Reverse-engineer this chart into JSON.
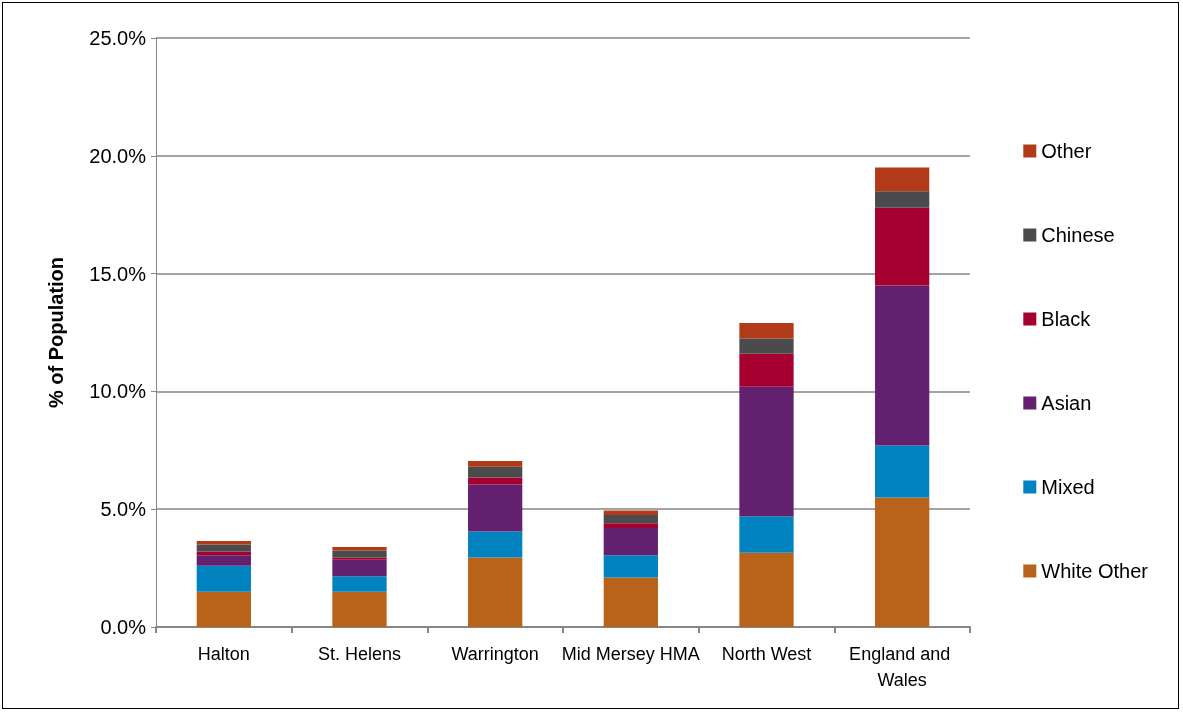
{
  "chart_data": {
    "type": "bar",
    "stacked": true,
    "ylabel": "% of Population",
    "categories": [
      "Halton",
      "St. Helens",
      "Warrington",
      "Mid Mersey HMA",
      "North West",
      "England and Wales"
    ],
    "series": [
      {
        "name": "White Other",
        "color": "#b8621a",
        "values": [
          1.5,
          1.5,
          2.95,
          2.1,
          3.15,
          5.5
        ]
      },
      {
        "name": "Mixed",
        "color": "#0083be",
        "values": [
          1.1,
          0.65,
          1.1,
          0.95,
          1.55,
          2.2
        ]
      },
      {
        "name": "Asian",
        "color": "#62206e",
        "values": [
          0.45,
          0.7,
          2.0,
          1.15,
          5.5,
          6.8
        ]
      },
      {
        "name": "Black",
        "color": "#a60031",
        "values": [
          0.15,
          0.1,
          0.3,
          0.2,
          1.4,
          3.3
        ]
      },
      {
        "name": "Chinese",
        "color": "#4b4b4d",
        "values": [
          0.3,
          0.3,
          0.45,
          0.35,
          0.65,
          0.7
        ]
      },
      {
        "name": "Other",
        "color": "#b13a19",
        "values": [
          0.15,
          0.15,
          0.25,
          0.2,
          0.65,
          1.0
        ]
      }
    ],
    "ylim": [
      0,
      25
    ],
    "yticks": [
      {
        "value": 0,
        "label": "0.0%"
      },
      {
        "value": 5,
        "label": "5.0%"
      },
      {
        "value": 10,
        "label": "10.0%"
      },
      {
        "value": 15,
        "label": "15.0%"
      },
      {
        "value": 20,
        "label": "20.0%"
      },
      {
        "value": 25,
        "label": "25.0%"
      }
    ],
    "grid": "y",
    "legend": "right"
  }
}
